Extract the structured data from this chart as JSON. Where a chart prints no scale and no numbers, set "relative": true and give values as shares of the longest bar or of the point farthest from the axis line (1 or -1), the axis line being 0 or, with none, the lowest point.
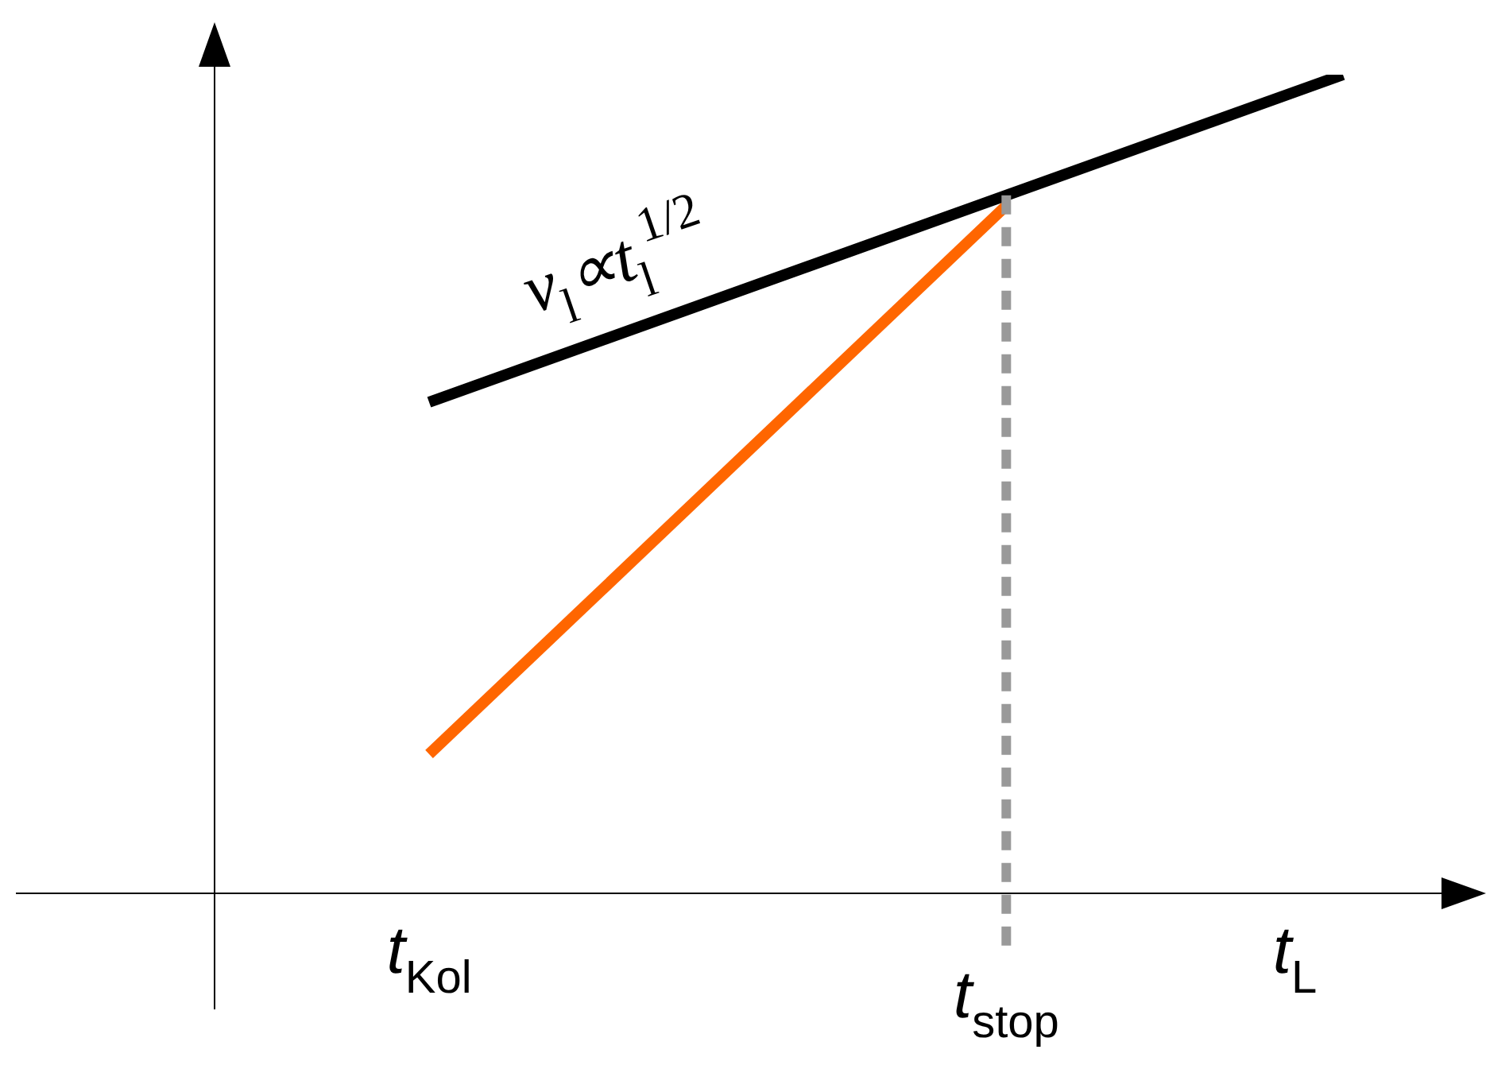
{
  "chart_data": {
    "type": "line",
    "relative": true,
    "categories": [
      "t$_{Kol}$",
      null,
      null,
      null,
      null,
      null,
      null,
      null,
      null,
      null,
      null,
      null,
      "t$_{stop}$",
      null,
      null,
      null,
      null,
      null,
      "t$_{L}$",
      null
    ],
    "series": [
      {
        "color": "#000000",
        "values": [
          0.6,
          null,
          null,
          null,
          null,
          null,
          null,
          null,
          null,
          null,
          null,
          null,
          null,
          null,
          null,
          null,
          null,
          null,
          null,
          1
        ]
      },
      {
        "color": "#ff6600",
        "values": [
          0.17,
          null,
          null,
          null,
          null,
          null,
          null,
          null,
          null,
          null,
          null,
          null,
          0.84,
          null,
          null,
          null,
          null,
          null,
          null,
          null
        ]
      }
    ],
    "ref_lines": [
      {
        "axis": "x",
        "value": "t$_{stop}$",
        "color": "#999999",
        "line_style": "dashed"
      }
    ],
    "annotations": [
      "ν$_{l}$∝t$_{l}$$^{1/2}$"
    ],
    "marker": "none",
    "line_style": "solid"
  }
}
